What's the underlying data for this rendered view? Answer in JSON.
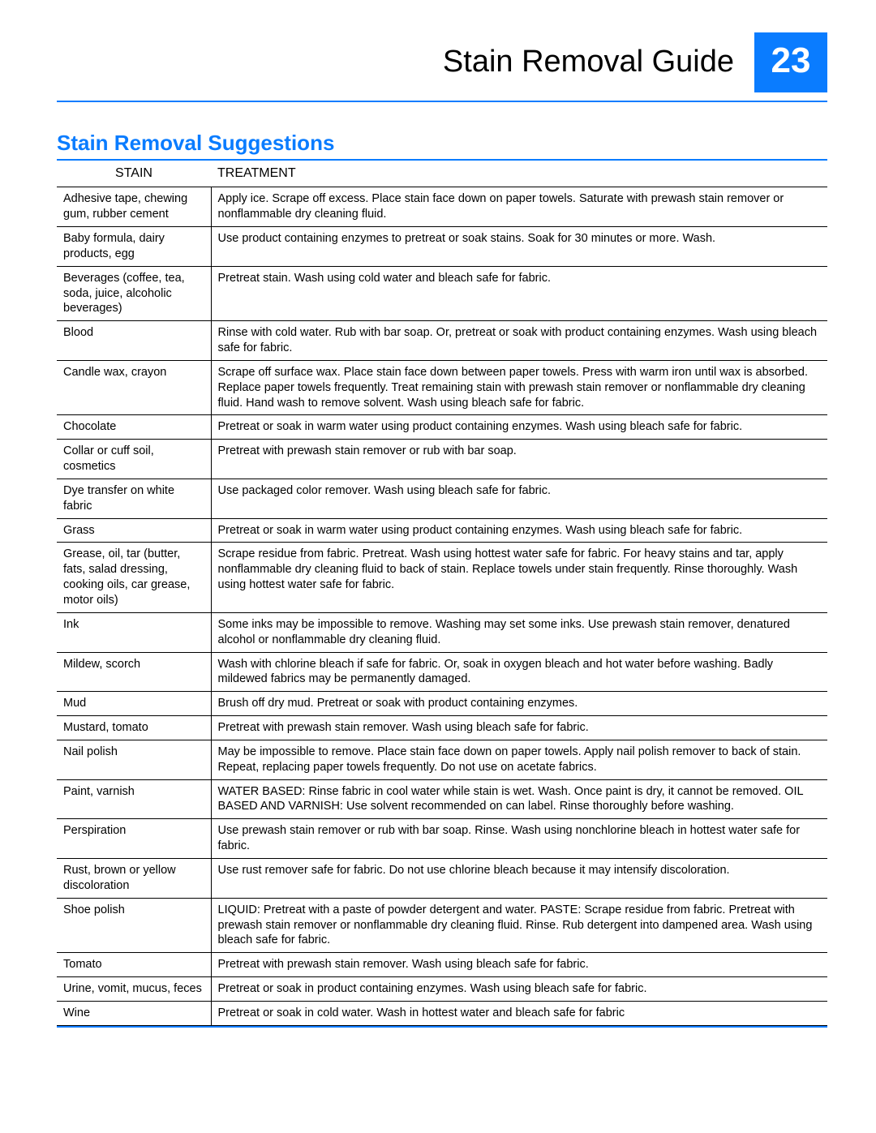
{
  "header": {
    "title": "Stain Removal Guide",
    "page_number": "23"
  },
  "section": {
    "title": "Stain Removal Suggestions"
  },
  "table": {
    "columns": [
      "STAIN",
      "TREATMENT"
    ],
    "rows": [
      {
        "stain": "Adhesive tape, chewing gum, rubber cement",
        "treatment": "Apply ice. Scrape off excess. Place stain face down on paper towels. Saturate with prewash stain remover or nonflammable dry cleaning fluid."
      },
      {
        "stain": "Baby formula, dairy products, egg",
        "treatment": "Use product containing enzymes to pretreat or soak stains. Soak for 30 minutes or more. Wash."
      },
      {
        "stain": "Beverages (coffee, tea, soda, juice, alcoholic beverages)",
        "treatment": "Pretreat stain. Wash using cold water and bleach safe for fabric."
      },
      {
        "stain": "Blood",
        "treatment": "Rinse with cold water. Rub with bar soap. Or, pretreat or soak with product containing enzymes. Wash using bleach safe for fabric."
      },
      {
        "stain": "Candle wax, crayon",
        "treatment": "Scrape off surface wax. Place stain face down between paper towels. Press with warm iron until wax is absorbed. Replace paper towels frequently. Treat remaining stain with prewash stain remover or nonflammable dry cleaning fluid. Hand wash to remove solvent. Wash using bleach safe for fabric."
      },
      {
        "stain": "Chocolate",
        "treatment": "Pretreat or soak in warm water using product containing enzymes. Wash using bleach safe for fabric."
      },
      {
        "stain": "Collar or cuff soil, cosmetics",
        "treatment": "Pretreat with prewash stain remover or rub with bar soap."
      },
      {
        "stain": "Dye transfer on white fabric",
        "treatment": "Use packaged color remover. Wash using bleach safe for fabric."
      },
      {
        "stain": "Grass",
        "treatment": "Pretreat or soak in warm water using product containing enzymes. Wash using bleach safe for fabric."
      },
      {
        "stain": "Grease, oil, tar (butter, fats, salad dressing, cooking oils, car grease, motor oils)",
        "treatment": "Scrape residue from fabric. Pretreat. Wash using hottest water safe for fabric. For heavy stains and tar, apply nonflammable dry cleaning fluid to back of stain. Replace towels under stain frequently. Rinse thoroughly. Wash using hottest water safe for fabric."
      },
      {
        "stain": "Ink",
        "treatment": "Some inks may be impossible to remove. Washing may set some inks. Use prewash stain remover, denatured alcohol or nonflammable dry cleaning fluid."
      },
      {
        "stain": "Mildew, scorch",
        "treatment": "Wash with chlorine bleach if safe for fabric. Or, soak in oxygen bleach and hot water before washing. Badly mildewed fabrics may be permanently damaged."
      },
      {
        "stain": "Mud",
        "treatment": "Brush off dry mud. Pretreat or soak with product containing enzymes."
      },
      {
        "stain": "Mustard, tomato",
        "treatment": "Pretreat with prewash stain remover. Wash using bleach safe for fabric."
      },
      {
        "stain": "Nail polish",
        "treatment": "May be impossible to remove. Place stain face down on paper towels. Apply nail polish remover to back of stain. Repeat, replacing paper towels frequently. Do not use on acetate fabrics."
      },
      {
        "stain": "Paint, varnish",
        "treatment": "WATER BASED: Rinse fabric in cool water while stain is wet. Wash. Once paint is dry, it cannot be removed. OIL BASED AND VARNISH: Use solvent recommended on can label. Rinse thoroughly before washing."
      },
      {
        "stain": "Perspiration",
        "treatment": "Use prewash stain remover or rub with bar soap. Rinse. Wash using nonchlorine bleach in hottest water safe for fabric."
      },
      {
        "stain": "Rust, brown or yellow discoloration",
        "treatment": "Use rust remover safe for fabric. Do not use chlorine bleach because it may intensify discoloration."
      },
      {
        "stain": "Shoe polish",
        "treatment": "LIQUID: Pretreat with a paste of powder detergent and water. PASTE: Scrape residue from fabric. Pretreat with prewash stain remover or nonflammable dry cleaning fluid. Rinse. Rub detergent into dampened area. Wash using bleach safe for fabric."
      },
      {
        "stain": "Tomato",
        "treatment": "Pretreat with prewash stain remover. Wash using bleach safe for fabric."
      },
      {
        "stain": "Urine, vomit, mucus, feces",
        "treatment": "Pretreat or soak in product containing enzymes. Wash using bleach safe for fabric."
      },
      {
        "stain": "Wine",
        "treatment": "Pretreat or soak in cold water. Wash in hottest water and bleach safe for fabric"
      }
    ]
  },
  "colors": {
    "accent": "#0a7cff",
    "text": "#000000",
    "background": "#ffffff"
  }
}
